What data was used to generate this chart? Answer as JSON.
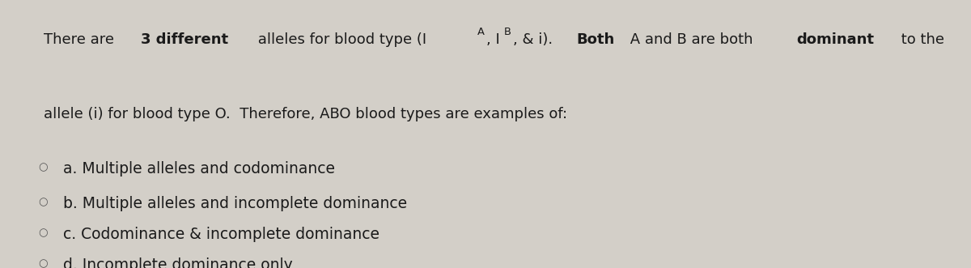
{
  "background_color": "#d3cfc8",
  "fig_width": 12.0,
  "fig_height": 3.31,
  "text_color": "#1a1a1a",
  "circle_color": "#555555",
  "options": [
    "a. Multiple alleles and codominance",
    "b. Multiple alleles and incomplete dominance",
    "c. Codominance & incomplete dominance",
    "d. Incomplete dominance only"
  ],
  "font_size_body": 13.0,
  "font_size_options": 13.5
}
